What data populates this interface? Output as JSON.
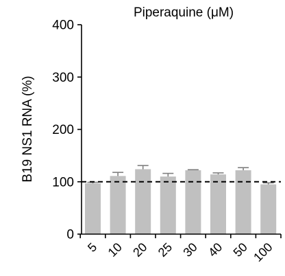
{
  "chart_data": {
    "type": "bar",
    "title": "Piperaquine (μM)",
    "ylabel": "B19 NS1 RNA (%)",
    "xlabel": "",
    "categories": [
      "5",
      "10",
      "20",
      "25",
      "30",
      "40",
      "50",
      "100"
    ],
    "values": [
      97,
      111,
      124,
      110,
      122,
      114,
      122,
      95
    ],
    "errors": [
      2,
      7,
      7,
      6,
      1,
      3,
      5,
      3
    ],
    "ylim": [
      0,
      400
    ],
    "yticks": [
      0,
      100,
      200,
      300,
      400
    ],
    "reference_line": 100,
    "grid": false,
    "legend": "none",
    "colors": {
      "bar": "#c0c0c0",
      "axis": "#000000",
      "reference": "#000000"
    }
  }
}
